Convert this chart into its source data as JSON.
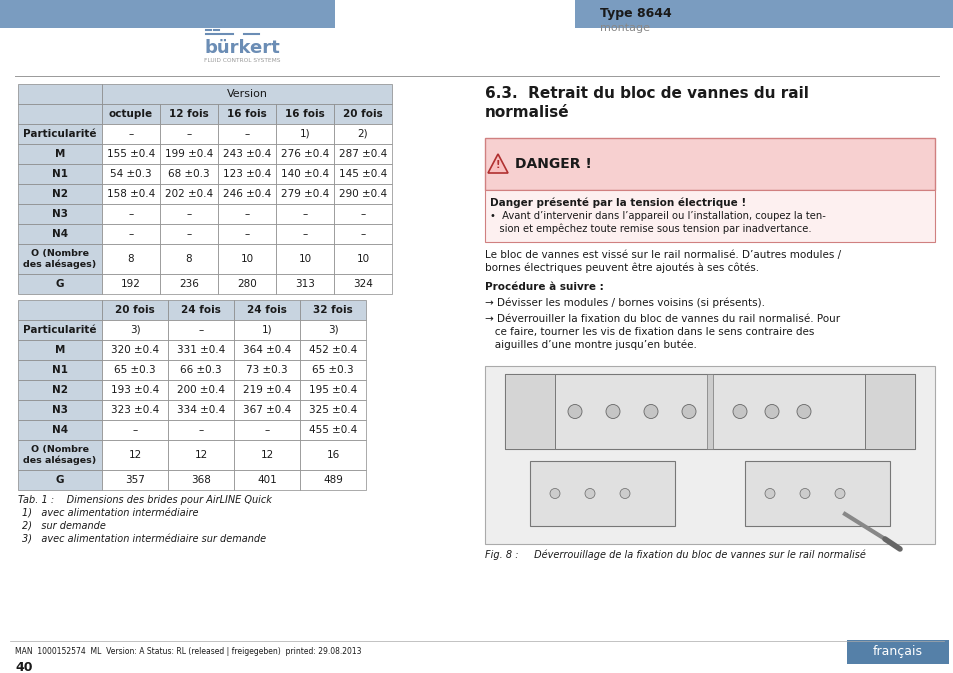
{
  "page_width": 9.54,
  "page_height": 6.73,
  "dpi": 100,
  "bg_color": "#ffffff",
  "header_bar_color": "#7a9cc0",
  "burkert_color": "#6b8db5",
  "type_label": "Type 8644",
  "montage_label": "montage",
  "separator_color": "#999999",
  "title_section": "6.3.  Retrait du bloc de vannes du rail\nnormalisé",
  "danger_title": "DANGER !",
  "danger_subtitle": "Danger présenté par la tension électrique !",
  "danger_bullet": "•  Avant d’intervenir dans l’appareil ou l’installation, coupez la ten-\n   sion et empêchez toute remise sous tension par inadvertance.",
  "danger_bg": "#f7d0d0",
  "danger_border": "#d08080",
  "body_text1": "Le bloc de vannes est vissé sur le rail normalisé. D’autres modules /\nbornes électriques peuvent être ajoutés à ses côtés.",
  "procedure_label": "Procédure à suivre :",
  "step1": "→ Dévisser les modules / bornes voisins (si présents).",
  "step2": "→ Déverrouiller la fixation du bloc de vannes du rail normalisé. Pour\n   ce faire, tourner les vis de fixation dans le sens contraire des\n   aiguilles d’une montre jusqu’en butée.",
  "fig_caption": "Fig. 8 :     Déverrouillage de la fixation du bloc de vannes sur le rail normalisé",
  "tab_caption": "Tab. 1 :    Dimensions des brides pour AirLINE Quick",
  "footnotes": [
    "1)   avec alimentation intermédiaire",
    "2)   sur demande",
    "3)   avec alimentation intermédiaire sur demande"
  ],
  "footer_left": "MAN  1000152574  ML  Version: A Status: RL (released | freigegeben)  printed: 29.08.2013",
  "footer_page": "40",
  "footer_lang": "français",
  "footer_lang_bg": "#5580a8",
  "table1_subheader": [
    "",
    "octuple",
    "12 fois",
    "16 fois",
    "16 fois",
    "20 fois"
  ],
  "table1_rows": [
    [
      "Particularité",
      "–",
      "–",
      "–",
      "1)",
      "2)"
    ],
    [
      "M",
      "155 ±0.4",
      "199 ±0.4",
      "243 ±0.4",
      "276 ±0.4",
      "287 ±0.4"
    ],
    [
      "N1",
      "54 ±0.3",
      "68 ±0.3",
      "123 ±0.4",
      "140 ±0.4",
      "145 ±0.4"
    ],
    [
      "N2",
      "158 ±0.4",
      "202 ±0.4",
      "246 ±0.4",
      "279 ±0.4",
      "290 ±0.4"
    ],
    [
      "N3",
      "–",
      "–",
      "–",
      "–",
      "–"
    ],
    [
      "N4",
      "–",
      "–",
      "–",
      "–",
      "–"
    ],
    [
      "O (Nombre\ndes alésages)",
      "8",
      "8",
      "10",
      "10",
      "10"
    ],
    [
      "G",
      "192",
      "236",
      "280",
      "313",
      "324"
    ]
  ],
  "table2_subheader": [
    "",
    "20 fois",
    "24 fois",
    "24 fois",
    "32 fois"
  ],
  "table2_rows": [
    [
      "Particularité",
      "3)",
      "–",
      "1)",
      "3)"
    ],
    [
      "M",
      "320 ±0.4",
      "331 ±0.4",
      "364 ±0.4",
      "452 ±0.4"
    ],
    [
      "N1",
      "65 ±0.3",
      "66 ±0.3",
      "73 ±0.3",
      "65 ±0.3"
    ],
    [
      "N2",
      "193 ±0.4",
      "200 ±0.4",
      "219 ±0.4",
      "195 ±0.4"
    ],
    [
      "N3",
      "323 ±0.4",
      "334 ±0.4",
      "367 ±0.4",
      "325 ±0.4"
    ],
    [
      "N4",
      "–",
      "–",
      "–",
      "455 ±0.4"
    ],
    [
      "O (Nombre\ndes alésages)",
      "12",
      "12",
      "12",
      "16"
    ],
    [
      "G",
      "357",
      "368",
      "401",
      "489"
    ]
  ],
  "table_header_bg": "#c8d4e0",
  "table_row_bg": "#ffffff",
  "table_bold_col0_bg": "#c8d4e0",
  "text_color": "#1a1a1a",
  "table_border_color": "#888888"
}
